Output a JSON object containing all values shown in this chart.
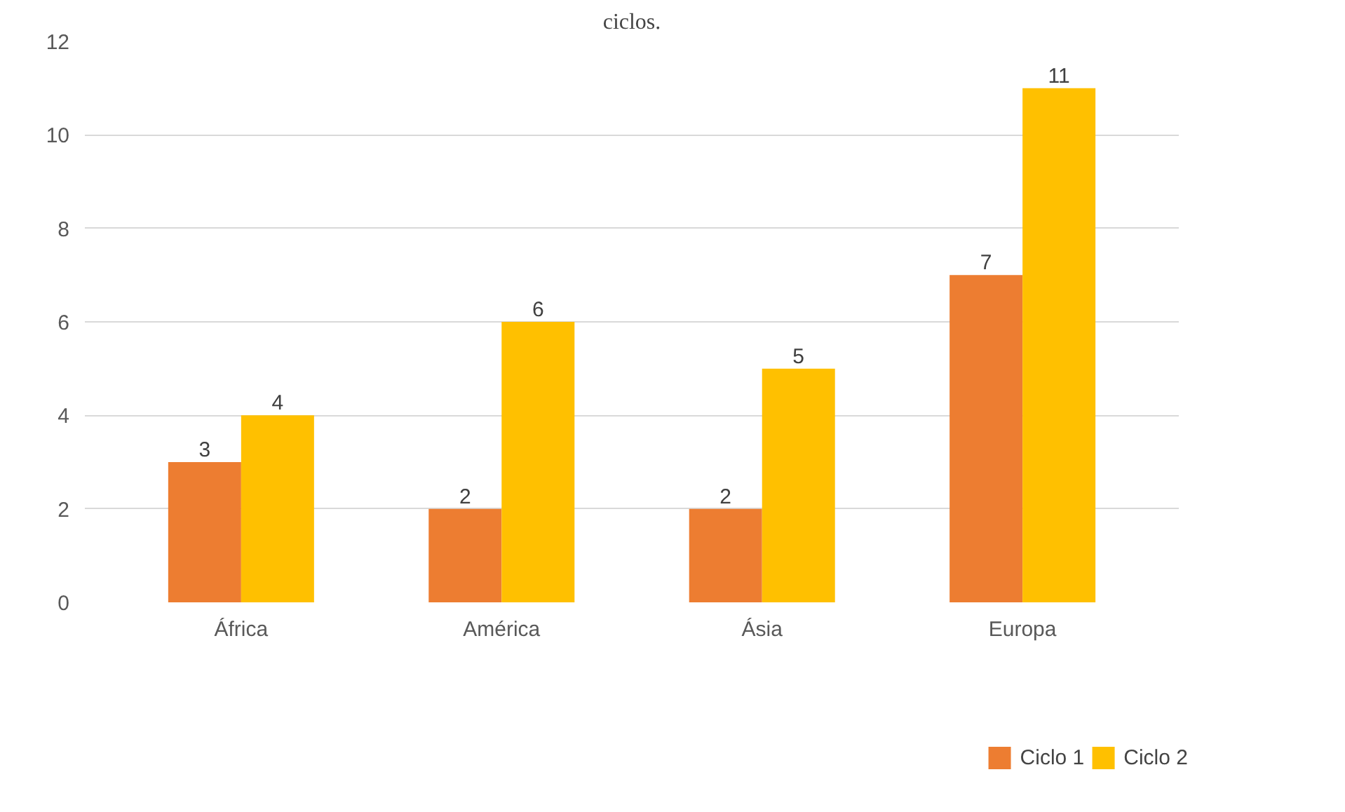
{
  "chart_data": {
    "type": "bar",
    "title": "ciclos.",
    "categories": [
      "África",
      "América",
      "Ásia",
      "Europa"
    ],
    "series": [
      {
        "name": "Ciclo 1",
        "color": "#ed7d31",
        "values": [
          3,
          2,
          2,
          7
        ]
      },
      {
        "name": "Ciclo 2",
        "color": "#ffc000",
        "values": [
          4,
          6,
          5,
          11
        ]
      }
    ],
    "ylim": [
      0,
      12
    ],
    "yticks": [
      0,
      2,
      4,
      6,
      8,
      10,
      12
    ],
    "grid": "y",
    "legend": "bottom",
    "data_labels": true
  }
}
